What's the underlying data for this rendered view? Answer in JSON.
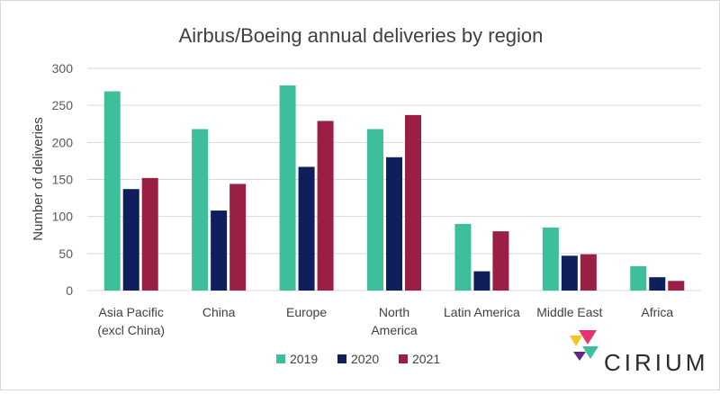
{
  "chart_data": {
    "type": "bar",
    "title": "Airbus/Boeing annual deliveries by region",
    "xlabel": "",
    "ylabel": "Number of deliveries",
    "ylim": [
      0,
      300
    ],
    "yticks": [
      0,
      50,
      100,
      150,
      200,
      250,
      300
    ],
    "grid": true,
    "legend_position": "bottom",
    "categories": [
      "Asia Pacific (excl China)",
      "China",
      "Europe",
      "North America",
      "Latin America",
      "Middle East",
      "Africa"
    ],
    "category_label_lines": [
      [
        "Asia Pacific",
        "(excl China)"
      ],
      [
        "China"
      ],
      [
        "Europe"
      ],
      [
        "North",
        "America"
      ],
      [
        "Latin America"
      ],
      [
        "Middle East"
      ],
      [
        "Africa"
      ]
    ],
    "series": [
      {
        "name": "2019",
        "color": "#3dbf9c",
        "values": [
          269,
          218,
          277,
          218,
          90,
          85,
          33
        ]
      },
      {
        "name": "2020",
        "color": "#0e1f5b",
        "values": [
          137,
          108,
          167,
          180,
          26,
          47,
          18
        ]
      },
      {
        "name": "2021",
        "color": "#9b1e45",
        "values": [
          152,
          144,
          229,
          237,
          80,
          49,
          13
        ]
      }
    ]
  },
  "logo": {
    "text": "CIRIUM",
    "icon": "cirium-logo-icon",
    "colors": [
      "#f7c51e",
      "#e8336f",
      "#3dbf9c",
      "#5b2a86"
    ]
  }
}
